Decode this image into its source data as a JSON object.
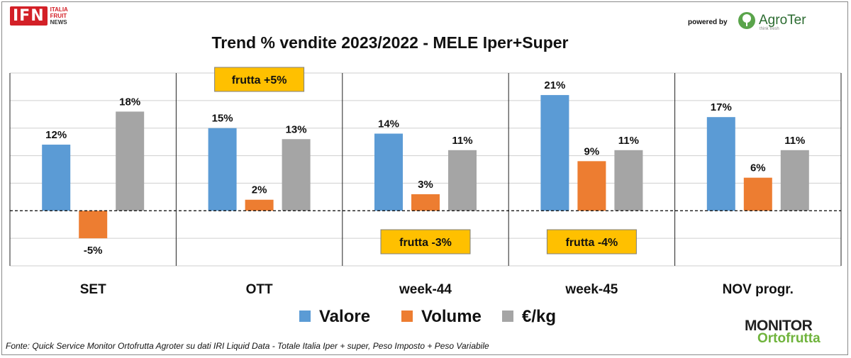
{
  "header": {
    "ifn_logo": "IFN",
    "ifn_line1": "ITALIA",
    "ifn_line2": "FRUIT",
    "ifn_line3": "NEWS",
    "powered_by": "powered by",
    "agroter": "AgroTer",
    "agroter_tagline": "think fresh"
  },
  "footer": {
    "source": "Fonte: Quick Service Monitor Ortofrutta Agroter su dati IRI Liquid Data - Totale Italia Iper + super, Peso Imposto + Peso Variabile",
    "monitor_line1": "MONITOR",
    "monitor_line2": "Ortofrutta"
  },
  "colors": {
    "valore": "#5b9bd5",
    "volume": "#ed7d31",
    "eurokg": "#a5a5a5",
    "callout_bg": "#ffc000"
  },
  "chart_data": {
    "type": "bar",
    "title": "Trend % vendite 2023/2022 - MELE Iper+Super",
    "categories": [
      "SET",
      "OTT",
      "week-44",
      "week-45",
      "NOV progr."
    ],
    "series": [
      {
        "name": "Valore",
        "values": [
          12,
          15,
          14,
          21,
          17
        ],
        "labels": [
          "12%",
          "15%",
          "14%",
          "21%",
          "17%"
        ]
      },
      {
        "name": "Volume",
        "values": [
          -5,
          2,
          3,
          9,
          6
        ],
        "labels": [
          "-5%",
          "2%",
          "3%",
          "9%",
          "6%"
        ]
      },
      {
        "name": "€/kg",
        "values": [
          18,
          13,
          11,
          11,
          11
        ],
        "labels": [
          "18%",
          "13%",
          "11%",
          "11%",
          "11%"
        ]
      }
    ],
    "ylim": [
      -10,
      25
    ],
    "grid": true,
    "legend": "bottom",
    "annotations": [
      {
        "category": "OTT",
        "text": "frutta +5%",
        "position": "top"
      },
      {
        "category": "week-44",
        "text": "frutta -3%",
        "position": "bottom"
      },
      {
        "category": "week-45",
        "text": "frutta -4%",
        "position": "bottom"
      }
    ]
  }
}
